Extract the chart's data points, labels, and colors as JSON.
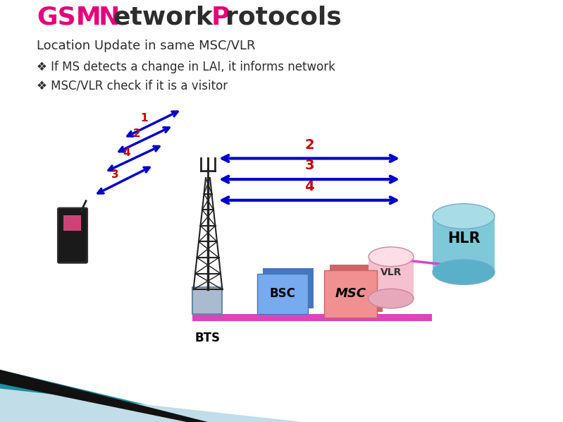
{
  "title_gsm": "GSM",
  "title_n": "N",
  "title_etwork": "etwork ",
  "title_p": "P",
  "title_rotocols": "rotocols",
  "subtitle": "Location Update in same MSC/VLR",
  "bullet1": "If MS detects a change in LAI, it informs network",
  "bullet2": "MSC/VLR check if it is a visitor",
  "bg_color": "#ffffff",
  "pink_color": "#e8007a",
  "dark_color": "#2d2d2d",
  "arrow_color": "#0000cc",
  "label_color": "#cc0000",
  "hlr_body": "#7ec8d8",
  "hlr_top": "#a8dde8",
  "hlr_bot": "#5ab0c8",
  "vlr_body": "#f5b8c8",
  "vlr_top": "#fdd0dc",
  "vlr_bot": "#e8a0b8",
  "bsc_color": "#6699dd",
  "msc_color": "#f08888",
  "base_color": "#dd44bb",
  "teal_dark": "#1a8fa0",
  "teal_light": "#c0dde8",
  "black_stripe": "#111111",
  "tower_color": "#222222",
  "hut_color": "#aabbd0",
  "phone_body": "#1a1a1a",
  "phone_screen": "#cc4477"
}
